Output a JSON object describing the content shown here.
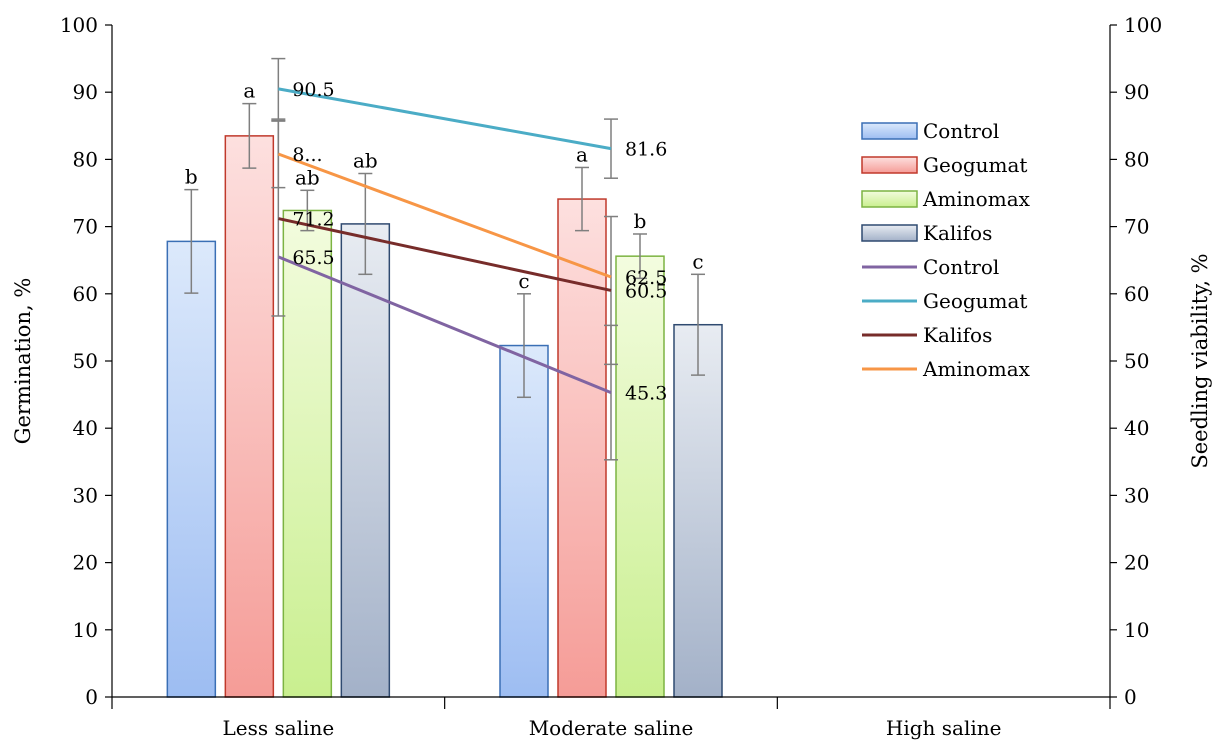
{
  "chart_data": {
    "type": "bar",
    "categories": [
      "Less saline",
      "Moderate saline",
      "High saline"
    ],
    "ylabel": "Germination, %",
    "y2label": "Seedling viability, %",
    "ylim": [
      0,
      100
    ],
    "y2lim": [
      0,
      100
    ],
    "yticks": [
      "0",
      "10",
      "20",
      "30",
      "40",
      "50",
      "60",
      "70",
      "80",
      "90",
      "100"
    ],
    "grid": false,
    "legend_position": "right",
    "bar_series": [
      {
        "name": "Control",
        "values": [
          67.8,
          52.3,
          null
        ],
        "errors": [
          7.7,
          7.7,
          null
        ],
        "letters": [
          "b",
          "c",
          ""
        ],
        "fill_top": "#dce9fb",
        "fill_bottom": "#9dbdf2",
        "stroke": "#3a6fb5"
      },
      {
        "name": "Geogumat",
        "values": [
          83.5,
          74.1,
          null
        ],
        "errors": [
          4.8,
          4.7,
          null
        ],
        "letters": [
          "a",
          "a",
          ""
        ],
        "fill_top": "#fde0df",
        "fill_bottom": "#f59c97",
        "stroke": "#c0392b"
      },
      {
        "name": "Aminomax",
        "values": [
          72.4,
          65.6,
          null
        ],
        "errors": [
          3.0,
          3.3,
          null
        ],
        "letters": [
          "ab",
          "b",
          ""
        ],
        "fill_top": "#f3fcdf",
        "fill_bottom": "#c9ef8f",
        "stroke": "#7cb342"
      },
      {
        "name": "Kalifos",
        "values": [
          70.4,
          55.4,
          null
        ],
        "errors": [
          7.5,
          7.5,
          null
        ],
        "letters": [
          "ab",
          "c",
          ""
        ],
        "fill_top": "#e8ecf2",
        "fill_bottom": "#a3b1c8",
        "stroke": "#2f4a70"
      }
    ],
    "line_series": [
      {
        "name": "Control",
        "values": [
          65.5,
          45.3
        ],
        "labels": [
          "65.5",
          "45.3"
        ],
        "color": "#8064a2"
      },
      {
        "name": "Geogumat",
        "values": [
          90.5,
          81.6
        ],
        "labels": [
          "90.5",
          "81.6"
        ],
        "color": "#4bacc6"
      },
      {
        "name": "Kalifos",
        "values": [
          71.2,
          60.5
        ],
        "labels": [
          "71.2",
          "60.5"
        ],
        "color": "#772c2a"
      },
      {
        "name": "Aminomax",
        "values": [
          80.8,
          62.5
        ],
        "labels": [
          "8...",
          "62.5"
        ],
        "color": "#f79646"
      }
    ],
    "line_error_bars": [
      {
        "x_category": 0,
        "center": 90.5,
        "error": 4.5
      },
      {
        "x_category": 0,
        "center": 71.2,
        "error": 14.5
      },
      {
        "x_category": 0,
        "center": 80.8,
        "error": 5.0
      },
      {
        "x_category": 1,
        "center": 81.6,
        "error": 4.4
      },
      {
        "x_category": 1,
        "center": 60.5,
        "error": 11.0
      },
      {
        "x_category": 1,
        "center": 45.3,
        "error": 10.0
      }
    ]
  }
}
